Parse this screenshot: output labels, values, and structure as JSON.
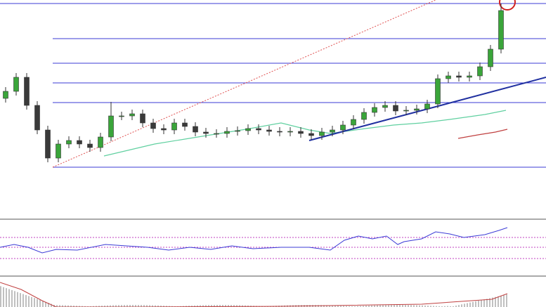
{
  "chart_data": {
    "type": "candlestick",
    "ylim": [
      0,
      310
    ],
    "up_color": "#3aa53a",
    "down_color": "#3a3a3a",
    "wick_color": "#333333",
    "level_color": "#3b3bd6",
    "levels": [
      305,
      255,
      220,
      192,
      164,
      72
    ],
    "open": [
      170,
      180,
      200,
      160,
      125,
      85,
      105,
      110,
      105,
      100,
      115,
      145,
      145,
      148,
      135,
      127,
      125,
      135,
      130,
      122,
      120,
      120,
      123,
      124,
      127,
      125,
      123,
      122,
      123,
      120,
      117,
      122,
      125,
      132,
      140,
      150,
      157,
      160,
      152,
      153,
      155,
      162,
      198,
      202,
      200,
      202,
      215,
      240
    ],
    "high": [
      186,
      206,
      206,
      166,
      131,
      111,
      116,
      116,
      111,
      121,
      165,
      151,
      154,
      154,
      141,
      133,
      141,
      141,
      136,
      128,
      126,
      129,
      130,
      133,
      133,
      131,
      129,
      129,
      129,
      126,
      128,
      131,
      138,
      146,
      156,
      163,
      166,
      166,
      159,
      161,
      168,
      204,
      208,
      208,
      208,
      221,
      246,
      305
    ],
    "low": [
      164,
      174,
      154,
      119,
      79,
      79,
      99,
      99,
      94,
      94,
      109,
      139,
      139,
      129,
      121,
      119,
      119,
      124,
      116,
      114,
      114,
      114,
      117,
      118,
      119,
      117,
      116,
      116,
      114,
      111,
      111,
      116,
      119,
      126,
      134,
      144,
      151,
      146,
      146,
      147,
      149,
      156,
      192,
      194,
      194,
      196,
      209,
      234
    ],
    "close": [
      180,
      200,
      160,
      125,
      85,
      105,
      110,
      105,
      100,
      115,
      145,
      145,
      148,
      135,
      127,
      125,
      135,
      130,
      122,
      120,
      120,
      123,
      124,
      127,
      125,
      123,
      122,
      123,
      120,
      117,
      122,
      125,
      132,
      140,
      150,
      157,
      160,
      152,
      153,
      155,
      162,
      198,
      202,
      200,
      202,
      215,
      240,
      295
    ]
  }
}
